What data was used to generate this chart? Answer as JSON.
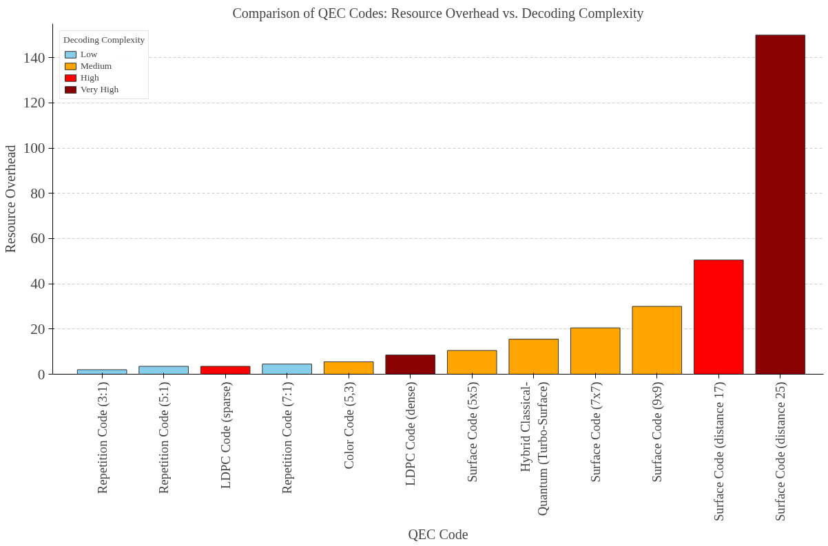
{
  "chart_data": {
    "type": "bar",
    "title": "Comparison of QEC Codes: Resource Overhead vs. Decoding Complexity",
    "xlabel": "QEC Code",
    "ylabel": "Resource Overhead",
    "legend_title": "Decoding Complexity",
    "categories": [
      "Repetition Code (3:1)",
      "Repetition Code (5:1)",
      "LDPC Code (sparse)",
      "Repetition Code (7:1)",
      "Color Code (5,3)",
      "LDPC Code (dense)",
      "Surface Code (5x5)",
      "Hybrid Classical-\nQuantum (Turbo-Surface)",
      "Surface Code (7x7)",
      "Surface Code (9x9)",
      "Surface Code (distance 17)",
      "Surface Code (distance 25)"
    ],
    "series": [
      {
        "name": "Low",
        "color": "#87ceeb",
        "values": [
          2,
          3.5,
          null,
          4.5,
          null,
          null,
          null,
          null,
          null,
          null,
          null,
          null
        ]
      },
      {
        "name": "Medium",
        "color": "#ffa500",
        "values": [
          null,
          null,
          null,
          null,
          5.5,
          null,
          10.5,
          15.5,
          20.5,
          30,
          null,
          null
        ]
      },
      {
        "name": "High",
        "color": "#ff0000",
        "values": [
          null,
          null,
          3.5,
          null,
          null,
          null,
          null,
          null,
          null,
          null,
          50.5,
          null
        ]
      },
      {
        "name": "Very High",
        "color": "#8b0000",
        "values": [
          null,
          null,
          null,
          null,
          null,
          8.5,
          null,
          null,
          null,
          null,
          null,
          150
        ]
      }
    ],
    "ylim": [
      0,
      155
    ],
    "yticks": [
      0,
      20,
      40,
      60,
      80,
      100,
      120,
      140
    ],
    "grid": "y",
    "legend": "top left"
  }
}
